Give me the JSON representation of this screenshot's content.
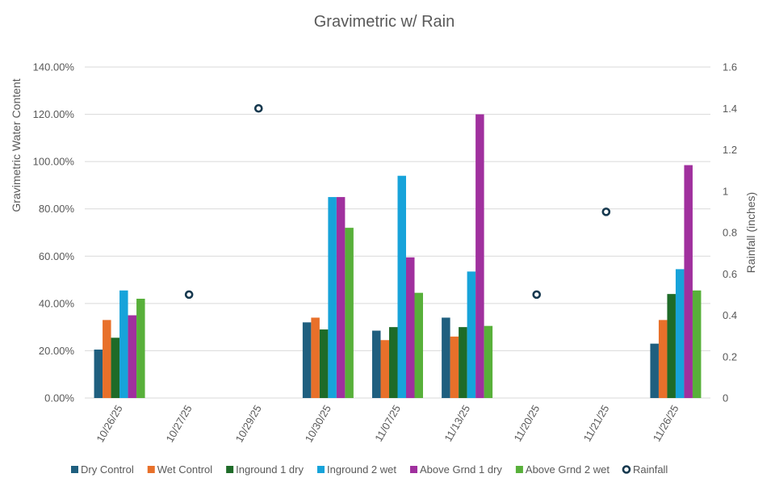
{
  "chart_data": {
    "type": "bar",
    "title": "Gravimetric w/ Rain",
    "ylabel": "Gravimetric Water Content",
    "y2label": "Rainfall (inches)",
    "xlabel": "",
    "categories": [
      "10/26/25",
      "10/27/25",
      "10/29/25",
      "10/30/25",
      "11/07/25",
      "11/13/25",
      "11/20/25",
      "11/21/25",
      "11/26/25"
    ],
    "ylim": [
      0,
      1.4
    ],
    "y_ticks": [
      0,
      0.2,
      0.4,
      0.6,
      0.8,
      1.0,
      1.2,
      1.4
    ],
    "y_tick_labels": [
      "0.00%",
      "20.00%",
      "40.00%",
      "60.00%",
      "80.00%",
      "100.00%",
      "120.00%",
      "140.00%"
    ],
    "y2lim": [
      0,
      1.6
    ],
    "y2_ticks": [
      0,
      0.2,
      0.4,
      0.6,
      0.8,
      1.0,
      1.2,
      1.4,
      1.6
    ],
    "y2_tick_labels": [
      "0",
      "0.2",
      "0.4",
      "0.6",
      "0.8",
      "1",
      "1.2",
      "1.4",
      "1.6"
    ],
    "grid": true,
    "legend_position": "bottom",
    "series": [
      {
        "name": "Dry Control",
        "color": "#1f5f7f",
        "values": [
          0.205,
          null,
          null,
          0.32,
          0.285,
          0.34,
          null,
          null,
          0.23
        ]
      },
      {
        "name": "Wet Control",
        "color": "#e8702a",
        "values": [
          0.33,
          null,
          null,
          0.34,
          0.245,
          0.26,
          null,
          null,
          0.33
        ]
      },
      {
        "name": "Inground 1 dry",
        "color": "#1e6b28",
        "values": [
          0.255,
          null,
          null,
          0.29,
          0.3,
          0.3,
          null,
          null,
          0.44
        ]
      },
      {
        "name": "Inground 2 wet",
        "color": "#17a3da",
        "values": [
          0.455,
          null,
          null,
          0.85,
          0.94,
          0.535,
          null,
          null,
          0.545
        ]
      },
      {
        "name": "Above Grnd 1 dry",
        "color": "#a0309e",
        "values": [
          0.35,
          null,
          null,
          0.85,
          0.595,
          1.2,
          null,
          null,
          0.985
        ]
      },
      {
        "name": "Above Grnd 2 wet",
        "color": "#58b03a",
        "values": [
          0.42,
          null,
          null,
          0.72,
          0.445,
          0.305,
          null,
          null,
          0.455
        ]
      }
    ],
    "rainfall": {
      "name": "Rainfall",
      "color": "#17394f",
      "values": [
        null,
        0.5,
        1.4,
        null,
        null,
        null,
        0.5,
        0.9,
        null
      ]
    }
  }
}
